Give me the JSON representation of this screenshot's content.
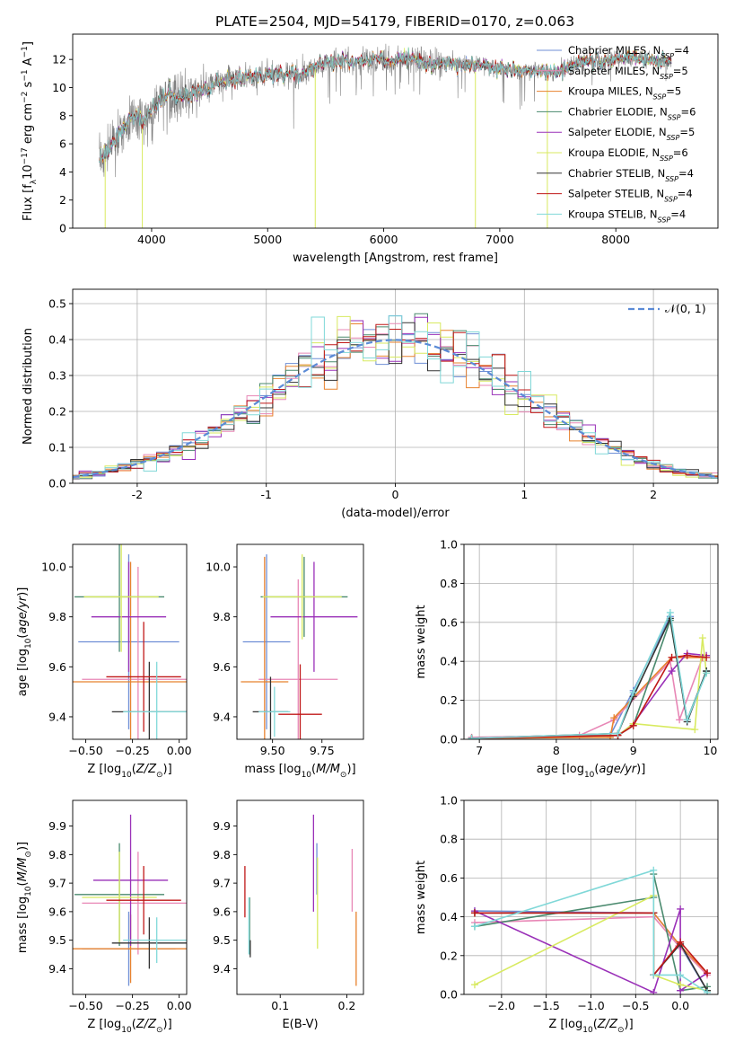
{
  "figure": {
    "title": "PLATE=2504, MJD=54179, FIBERID=0170, z=0.063"
  },
  "models": [
    {
      "name": "Chabrier MILES",
      "nssp": "4",
      "color": "#6f8fd6"
    },
    {
      "name": "Salpeter MILES",
      "nssp": "5",
      "color": "#e887b6"
    },
    {
      "name": "Kroupa MILES",
      "nssp": "5",
      "color": "#e8822e"
    },
    {
      "name": "Chabrier ELODIE",
      "nssp": "6",
      "color": "#4a8a6e"
    },
    {
      "name": "Salpeter ELODIE",
      "nssp": "5",
      "color": "#9a30b8"
    },
    {
      "name": "Kroupa ELODIE",
      "nssp": "6",
      "color": "#d8ea60"
    },
    {
      "name": "Chabrier STELIB",
      "nssp": "4",
      "color": "#333333"
    },
    {
      "name": "Salpeter STELIB",
      "nssp": "4",
      "color": "#c01818"
    },
    {
      "name": "Kroupa STELIB",
      "nssp": "4",
      "color": "#80d8d8"
    }
  ],
  "chart_data": [
    {
      "id": "spectrum",
      "type": "line",
      "xlabel": "wavelength [Angstrom, rest frame]",
      "ylabel": "Flux [f_λ10^-17 erg cm^-2 s^-1 A^-1]",
      "xlim": [
        3320,
        8880
      ],
      "ylim": [
        0,
        13.8
      ],
      "xticks": [
        4000,
        5000,
        6000,
        7000,
        8000
      ],
      "yticks": [
        0,
        2,
        4,
        6,
        8,
        10,
        12
      ],
      "legend_position": "right",
      "data_series": {
        "name": "data",
        "color": "#808080"
      },
      "continuum": {
        "x": [
          3550,
          3650,
          3750,
          3850,
          3950,
          4050,
          4150,
          4250,
          4350,
          4450,
          4550,
          4650,
          4750,
          4850,
          4950,
          5050,
          5150,
          5250,
          5350,
          5450,
          5550,
          5650,
          5750,
          5850,
          5950,
          6050,
          6150,
          6250,
          6350,
          6450,
          6550,
          6650,
          6750,
          6850,
          6950,
          7050,
          7150,
          7250,
          7350,
          7450,
          7550,
          7650,
          7750,
          7850,
          7950,
          8050,
          8150,
          8250,
          8350,
          8450
        ],
        "y": [
          4.8,
          5.8,
          7.2,
          8.0,
          7.6,
          8.9,
          9.6,
          9.3,
          9.5,
          9.9,
          10.3,
          10.6,
          10.6,
          10.9,
          10.8,
          11.0,
          11.0,
          10.8,
          11.2,
          11.6,
          11.7,
          11.9,
          11.8,
          12.0,
          12.0,
          11.8,
          12.0,
          12.1,
          11.8,
          11.6,
          11.8,
          11.7,
          11.6,
          11.6,
          11.4,
          11.3,
          11.1,
          11.2,
          11.3,
          11.0,
          11.3,
          11.7,
          11.9,
          11.8,
          12.0,
          12.0,
          12.1,
          12.0,
          12.0,
          11.9
        ]
      },
      "spectrum_range": [
        3550,
        8480
      ],
      "data_drops": [
        {
          "x": 3600,
          "y": 0
        },
        {
          "x": 3920,
          "y": 0
        },
        {
          "x": 5410,
          "y": 0
        },
        {
          "x": 6790,
          "y": 0
        },
        {
          "x": 7410,
          "y": 0
        }
      ]
    },
    {
      "id": "residuals",
      "type": "histogram",
      "xlabel": "(data-model)/error",
      "ylabel": "Normed distribution",
      "xlim": [
        -2.5,
        2.5
      ],
      "ylim": [
        0,
        0.54
      ],
      "xticks": [
        -2,
        -1,
        0,
        1,
        2
      ],
      "yticks": [
        0.0,
        0.1,
        0.2,
        0.3,
        0.4,
        0.5
      ],
      "bin_width": 0.1,
      "reference": {
        "name": "N(0,1)",
        "label_tex": "𝒩(0, 1)",
        "color": "#5b8bd6"
      }
    },
    {
      "id": "age_vs_Z",
      "type": "errorbar",
      "xlabel": "Z [log10(Z/Z⊙)]",
      "ylabel": "age [log10(age/yr)]",
      "xlim": [
        -0.57,
        0.04
      ],
      "ylim": [
        9.31,
        10.09
      ],
      "xticks": [
        -0.5,
        -0.25,
        0.0
      ],
      "yticks": [
        9.4,
        9.6,
        9.8,
        10.0
      ],
      "points": [
        {
          "model": 0,
          "x": -0.27,
          "xerr": 0.27,
          "y": 9.7,
          "yerr": 0.35
        },
        {
          "model": 1,
          "x": -0.22,
          "xerr": 0.3,
          "y": 9.55,
          "yerr": 0.45
        },
        {
          "model": 2,
          "x": -0.26,
          "xerr": 0.32,
          "y": 9.54,
          "yerr": 0.48
        },
        {
          "model": 3,
          "x": -0.32,
          "xerr": 0.24,
          "y": 9.88,
          "yerr": 0.22
        },
        {
          "model": 4,
          "x": -0.27,
          "xerr": 0.2,
          "y": 9.8,
          "yerr": 0.22
        },
        {
          "model": 5,
          "x": -0.31,
          "xerr": 0.2,
          "y": 9.88,
          "yerr": 0.22
        },
        {
          "model": 6,
          "x": -0.16,
          "xerr": 0.2,
          "y": 9.42,
          "yerr": 0.2
        },
        {
          "model": 7,
          "x": -0.19,
          "xerr": 0.2,
          "y": 9.56,
          "yerr": 0.22
        },
        {
          "model": 8,
          "x": -0.12,
          "xerr": 0.18,
          "y": 9.42,
          "yerr": 0.2
        }
      ]
    },
    {
      "id": "age_vs_mass",
      "type": "errorbar",
      "xlabel": "mass [log10(M/M⊙)]",
      "ylabel": "",
      "xlim": [
        9.32,
        9.96
      ],
      "ylim": [
        9.31,
        10.09
      ],
      "xticks": [
        9.5,
        9.75
      ],
      "yticks": [
        9.4,
        9.6,
        9.8,
        10.0
      ],
      "points": [
        {
          "model": 0,
          "x": 9.47,
          "xerr": 0.12,
          "y": 9.7,
          "yerr": 0.35
        },
        {
          "model": 1,
          "x": 9.63,
          "xerr": 0.2,
          "y": 9.55,
          "yerr": 0.4
        },
        {
          "model": 2,
          "x": 9.46,
          "xerr": 0.12,
          "y": 9.54,
          "yerr": 0.5
        },
        {
          "model": 3,
          "x": 9.66,
          "xerr": 0.22,
          "y": 9.88,
          "yerr": 0.16
        },
        {
          "model": 4,
          "x": 9.71,
          "xerr": 0.22,
          "y": 9.8,
          "yerr": 0.22
        },
        {
          "model": 5,
          "x": 9.65,
          "xerr": 0.2,
          "y": 9.88,
          "yerr": 0.17
        },
        {
          "model": 6,
          "x": 9.49,
          "xerr": 0.09,
          "y": 9.42,
          "yerr": 0.14
        },
        {
          "model": 7,
          "x": 9.64,
          "xerr": 0.11,
          "y": 9.41,
          "yerr": 0.2
        },
        {
          "model": 8,
          "x": 9.51,
          "xerr": 0.08,
          "y": 9.42,
          "yerr": 0.1
        }
      ]
    },
    {
      "id": "weight_vs_age",
      "type": "line",
      "xlabel": "age [log10(age/yr)]",
      "ylabel": "mass weight",
      "xlim": [
        6.8,
        10.1
      ],
      "ylim": [
        0,
        1.0
      ],
      "xticks": [
        7,
        8,
        9,
        10
      ],
      "yticks": [
        0.0,
        0.2,
        0.4,
        0.6,
        0.8,
        1.0
      ],
      "series": [
        {
          "model": 0,
          "x": [
            6.9,
            8.7,
            9.0,
            9.48,
            9.7,
            9.95
          ],
          "y": [
            0.005,
            0.02,
            0.25,
            0.63,
            0.1,
            0.35
          ]
        },
        {
          "model": 1,
          "x": [
            6.9,
            8.3,
            8.75,
            9.48,
            9.6,
            9.9
          ],
          "y": [
            0.01,
            0.02,
            0.1,
            0.4,
            0.1,
            0.42
          ]
        },
        {
          "model": 2,
          "x": [
            6.9,
            8.7,
            8.75,
            9.5,
            9.9
          ],
          "y": [
            0.005,
            0.01,
            0.11,
            0.42,
            0.42
          ]
        },
        {
          "model": 3,
          "x": [
            6.9,
            8.8,
            9.0,
            9.48,
            9.7,
            9.95
          ],
          "y": [
            0.005,
            0.02,
            0.07,
            0.61,
            0.1,
            0.35
          ]
        },
        {
          "model": 4,
          "x": [
            6.9,
            8.8,
            9.0,
            9.5,
            9.7,
            9.95
          ],
          "y": [
            0.005,
            0.02,
            0.08,
            0.35,
            0.44,
            0.43
          ]
        },
        {
          "model": 5,
          "x": [
            6.9,
            8.8,
            9.0,
            9.8,
            9.9,
            9.95
          ],
          "y": [
            0.005,
            0.02,
            0.08,
            0.05,
            0.52,
            0.34
          ]
        },
        {
          "model": 6,
          "x": [
            6.9,
            8.8,
            9.0,
            9.48,
            9.7,
            9.95
          ],
          "y": [
            0.005,
            0.03,
            0.22,
            0.62,
            0.09,
            0.35
          ]
        },
        {
          "model": 7,
          "x": [
            6.9,
            8.8,
            9.0,
            9.5,
            9.7,
            9.95
          ],
          "y": [
            0.005,
            0.02,
            0.07,
            0.42,
            0.43,
            0.42
          ]
        },
        {
          "model": 8,
          "x": [
            6.9,
            8.8,
            9.0,
            9.48,
            9.7,
            9.95
          ],
          "y": [
            0.005,
            0.03,
            0.24,
            0.65,
            0.1,
            0.34
          ]
        }
      ]
    },
    {
      "id": "mass_vs_Z",
      "type": "errorbar",
      "xlabel": "Z [log10(Z/Z⊙)]",
      "ylabel": "mass [log10(M/M⊙)]",
      "xlim": [
        -0.57,
        0.04
      ],
      "ylim": [
        9.31,
        9.99
      ],
      "xticks": [
        -0.5,
        -0.25,
        0.0
      ],
      "yticks": [
        9.4,
        9.5,
        9.6,
        9.7,
        9.8,
        9.9
      ],
      "points": [
        {
          "model": 0,
          "x": -0.27,
          "xerr": 0.25,
          "y": 9.47,
          "yerr": 0.13
        },
        {
          "model": 1,
          "x": -0.22,
          "xerr": 0.3,
          "y": 9.63,
          "yerr": 0.18
        },
        {
          "model": 2,
          "x": -0.26,
          "xerr": 0.32,
          "y": 9.47,
          "yerr": 0.12
        },
        {
          "model": 3,
          "x": -0.32,
          "xerr": 0.24,
          "y": 9.66,
          "yerr": 0.18
        },
        {
          "model": 4,
          "x": -0.26,
          "xerr": 0.2,
          "y": 9.71,
          "yerr": 0.23
        },
        {
          "model": 5,
          "x": -0.32,
          "xerr": 0.2,
          "y": 9.65,
          "yerr": 0.16
        },
        {
          "model": 6,
          "x": -0.16,
          "xerr": 0.2,
          "y": 9.49,
          "yerr": 0.09
        },
        {
          "model": 7,
          "x": -0.19,
          "xerr": 0.2,
          "y": 9.64,
          "yerr": 0.12
        },
        {
          "model": 8,
          "x": -0.12,
          "xerr": 0.18,
          "y": 9.5,
          "yerr": 0.08
        }
      ]
    },
    {
      "id": "mass_vs_ebv",
      "type": "errorbar",
      "xlabel": "E(B-V)",
      "ylabel": "",
      "xlim": [
        0.035,
        0.225
      ],
      "ylim": [
        9.31,
        9.99
      ],
      "xticks": [
        0.1,
        0.2
      ],
      "yticks": [
        9.4,
        9.5,
        9.6,
        9.7,
        9.8,
        9.9
      ],
      "points": [
        {
          "model": 0,
          "x": 0.155,
          "xerr": 0,
          "y": 9.75,
          "yerr": 0.09
        },
        {
          "model": 1,
          "x": 0.208,
          "xerr": 0,
          "y": 9.71,
          "yerr": 0.11
        },
        {
          "model": 2,
          "x": 0.214,
          "xerr": 0,
          "y": 9.47,
          "yerr": 0.13
        },
        {
          "model": 3,
          "x": 0.054,
          "xerr": 0,
          "y": 9.55,
          "yerr": 0.1
        },
        {
          "model": 4,
          "x": 0.15,
          "xerr": 0,
          "y": 9.77,
          "yerr": 0.17
        },
        {
          "model": 5,
          "x": 0.156,
          "xerr": 0,
          "y": 9.63,
          "yerr": 0.16
        },
        {
          "model": 6,
          "x": 0.055,
          "xerr": 0,
          "y": 9.47,
          "yerr": 0.03
        },
        {
          "model": 7,
          "x": 0.047,
          "xerr": 0,
          "y": 9.67,
          "yerr": 0.09
        },
        {
          "model": 8,
          "x": 0.053,
          "xerr": 0,
          "y": 9.55,
          "yerr": 0.1
        }
      ]
    },
    {
      "id": "weight_vs_Z",
      "type": "line",
      "xlabel": "Z [log10(Z/Z⊙)]",
      "ylabel": "mass weight",
      "xlim": [
        -2.42,
        0.42
      ],
      "ylim": [
        0,
        1.0
      ],
      "xticks": [
        -2.0,
        -1.5,
        -1.0,
        -0.5,
        0.0
      ],
      "yticks": [
        0.0,
        0.2,
        0.4,
        0.6,
        0.8,
        1.0
      ],
      "series": [
        {
          "model": 0,
          "x": [
            -2.3,
            -0.3,
            0.0,
            0.3
          ],
          "y": [
            0.43,
            0.42,
            0.25,
            0.02
          ]
        },
        {
          "model": 1,
          "x": [
            -2.3,
            -0.3,
            -0.02,
            0.3
          ],
          "y": [
            0.37,
            0.4,
            0.25,
            0.1
          ]
        },
        {
          "model": 2,
          "x": [
            -2.3,
            -0.3,
            0.0,
            0.3
          ],
          "y": [
            0.42,
            0.42,
            0.25,
            0.11
          ]
        },
        {
          "model": 3,
          "x": [
            -2.3,
            -0.3,
            -0.3,
            0.0,
            0.3
          ],
          "y": [
            0.35,
            0.5,
            0.62,
            0.02,
            0.04
          ]
        },
        {
          "model": 4,
          "x": [
            -2.3,
            -0.3,
            0.0,
            0.0,
            0.3
          ],
          "y": [
            0.43,
            0.01,
            0.44,
            0.02,
            0.11
          ]
        },
        {
          "model": 5,
          "x": [
            -2.3,
            -0.3,
            -0.3,
            0.0,
            0.3
          ],
          "y": [
            0.05,
            0.51,
            0.1,
            0.05,
            0.02
          ]
        },
        {
          "model": 6,
          "x": [
            -2.3,
            -0.3,
            -0.3,
            0.0,
            0.3
          ],
          "y": [
            0.42,
            0.42,
            0.1,
            0.26,
            0.02
          ]
        },
        {
          "model": 7,
          "x": [
            -2.3,
            -0.3,
            -0.3,
            0.0,
            0.3
          ],
          "y": [
            0.42,
            0.42,
            0.1,
            0.27,
            0.11
          ]
        },
        {
          "model": 8,
          "x": [
            -2.3,
            -0.3,
            -0.3,
            0.0,
            0.3
          ],
          "y": [
            0.35,
            0.64,
            0.1,
            0.1,
            0.01
          ]
        }
      ]
    }
  ]
}
